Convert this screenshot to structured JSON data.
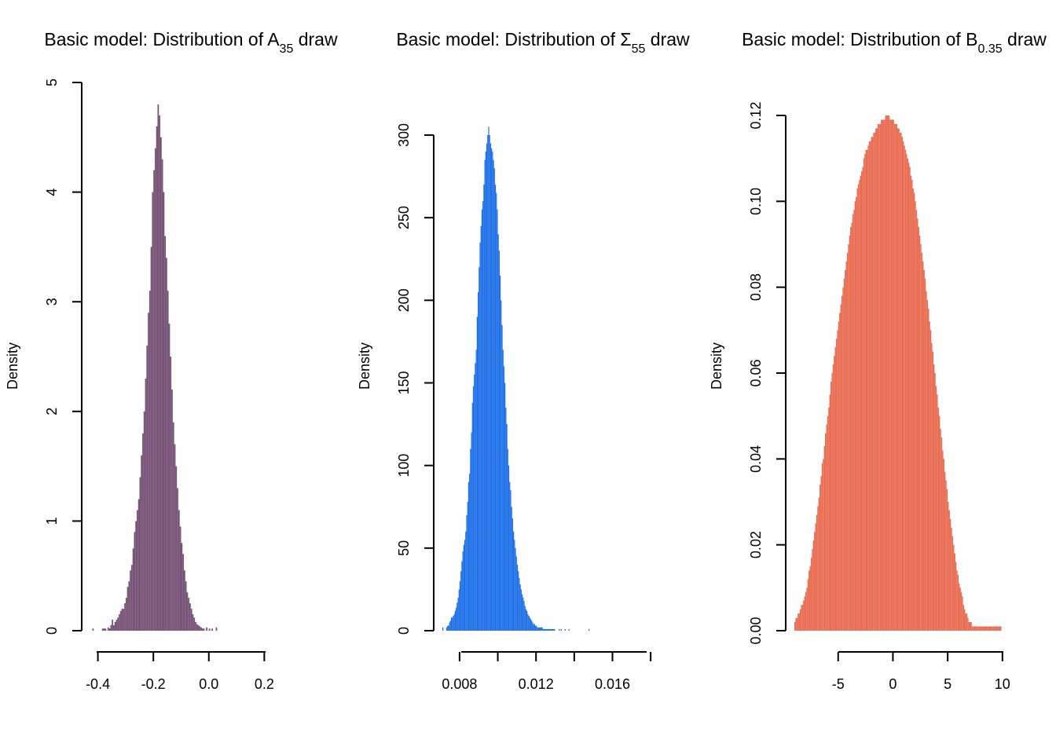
{
  "chart_data": [
    {
      "type": "bar",
      "title": "Basic model: Distribution of A",
      "title_sub": "35",
      "title_suffix": " draw",
      "xlabel": "",
      "ylabel": "Density",
      "color": "#775377",
      "xlim": [
        -0.43,
        0.335
      ],
      "ylim": [
        0,
        5
      ],
      "x_ticks": [
        -0.4,
        -0.2,
        0.0,
        0.2
      ],
      "x_tick_labels": [
        "-0.4",
        "-0.2",
        "0.0",
        "0.2"
      ],
      "y_ticks": [
        0,
        1,
        2,
        3,
        4,
        5
      ],
      "y_tick_labels": [
        "0",
        "1",
        "2",
        "3",
        "4",
        "5"
      ],
      "bin_start": -0.42,
      "bin_width": 0.005,
      "values": [
        0.02,
        0,
        0,
        0,
        0,
        0,
        0,
        0.02,
        0.02,
        0.02,
        0,
        0.03,
        0.02,
        0.05,
        0.1,
        0.05,
        0.08,
        0.1,
        0.12,
        0.15,
        0.18,
        0.2,
        0.2,
        0.25,
        0.3,
        0.4,
        0.45,
        0.55,
        0.6,
        0.75,
        0.9,
        1.0,
        1.1,
        1.2,
        1.4,
        1.6,
        1.8,
        2.0,
        2.3,
        2.6,
        2.9,
        3.1,
        3.5,
        4.0,
        4.2,
        4.4,
        4.6,
        4.8,
        4.7,
        4.5,
        4.3,
        4.0,
        3.6,
        3.4,
        3.1,
        2.8,
        2.5,
        2.2,
        1.9,
        1.7,
        1.5,
        1.3,
        1.1,
        0.95,
        0.8,
        0.7,
        0.55,
        0.45,
        0.35,
        0.3,
        0.25,
        0.2,
        0.15,
        0.12,
        0.08,
        0.06,
        0.05,
        0.04,
        0.03,
        0.02,
        0.02,
        0,
        0.03,
        0,
        0.02,
        0,
        0.02,
        0,
        0,
        0.03
      ]
    },
    {
      "type": "bar",
      "title": "Basic model: Distribution of Σ",
      "title_sub": "55",
      "title_suffix": " draw",
      "xlabel": "",
      "ylabel": "Density",
      "color": "#1d6fe8",
      "xlim": [
        0.0071,
        0.0182
      ],
      "ylim": [
        0,
        300
      ],
      "x_ticks": [
        0.008,
        0.01,
        0.012,
        0.014,
        0.016,
        0.018
      ],
      "x_tick_labels": [
        "0.008",
        "",
        "0.012",
        "",
        "0.016",
        ""
      ],
      "y_ticks": [
        0,
        50,
        100,
        150,
        200,
        250,
        300
      ],
      "y_tick_labels": [
        "0",
        "50",
        "100",
        "150",
        "200",
        "250",
        "300"
      ],
      "bin_start": 0.0071,
      "bin_width": 5e-05,
      "values": [
        2,
        0,
        0,
        0,
        2,
        3,
        3,
        5,
        6,
        8,
        8,
        9,
        10,
        12,
        14,
        17,
        20,
        25,
        30,
        36,
        42,
        48,
        52,
        55,
        60,
        70,
        78,
        90,
        95,
        110,
        120,
        138,
        148,
        155,
        162,
        170,
        190,
        205,
        220,
        235,
        245,
        255,
        260,
        270,
        285,
        290,
        295,
        300,
        305,
        300,
        295,
        292,
        290,
        285,
        280,
        270,
        265,
        255,
        240,
        230,
        215,
        200,
        185,
        170,
        160,
        150,
        135,
        125,
        110,
        100,
        90,
        85,
        75,
        68,
        60,
        55,
        50,
        45,
        40,
        36,
        32,
        28,
        25,
        22,
        20,
        18,
        15,
        13,
        12,
        10,
        9,
        8,
        7,
        6,
        5,
        4,
        4,
        3,
        3,
        2,
        2,
        2,
        2,
        2,
        2,
        1,
        1,
        1,
        1,
        1,
        1,
        1,
        1,
        1,
        1,
        1,
        1,
        1,
        0,
        0,
        0,
        0,
        1,
        0,
        1,
        0,
        0,
        0,
        1,
        0,
        0,
        0,
        1,
        0,
        0,
        0,
        0,
        0,
        0,
        0,
        0,
        0,
        0,
        0,
        0,
        0,
        0,
        0,
        0,
        0,
        0,
        0,
        0,
        1,
        0,
        0,
        0,
        0,
        0,
        0,
        0,
        0,
        0,
        0,
        0,
        0,
        0,
        0,
        0,
        0,
        0,
        0,
        0,
        0,
        0,
        0,
        0,
        0,
        0,
        0,
        0,
        0,
        0,
        0,
        0,
        0,
        0,
        0,
        0,
        0,
        0,
        0,
        0,
        0,
        0,
        0,
        0,
        0,
        0,
        0,
        0,
        0,
        0,
        0,
        0,
        0,
        0,
        0,
        0,
        0,
        0,
        0,
        0,
        0,
        0,
        0,
        0,
        0,
        0,
        0,
        0,
        0,
        0,
        0
      ]
    },
    {
      "type": "bar",
      "title": "Basic model: Distribution of B",
      "title_sub": "0.35",
      "title_suffix": " draw",
      "xlabel": "",
      "ylabel": "Density",
      "color": "#e96c51",
      "xlim": [
        -9,
        10.3
      ],
      "ylim": [
        0,
        0.12
      ],
      "x_ticks": [
        -5,
        0,
        5,
        10
      ],
      "x_tick_labels": [
        "-5",
        "0",
        "5",
        "10"
      ],
      "y_ticks": [
        0,
        0.02,
        0.04,
        0.06,
        0.08,
        0.1,
        0.12
      ],
      "y_tick_labels": [
        "0.00",
        "0.02",
        "0.04",
        "0.06",
        "0.08",
        "0.10",
        "0.12"
      ],
      "bin_start": -9,
      "bin_width": 0.1,
      "values": [
        0.002,
        0.003,
        0.003,
        0.004,
        0.004,
        0.005,
        0.006,
        0.006,
        0.007,
        0.008,
        0.009,
        0.01,
        0.012,
        0.014,
        0.015,
        0.017,
        0.019,
        0.021,
        0.023,
        0.025,
        0.027,
        0.029,
        0.031,
        0.034,
        0.036,
        0.039,
        0.04,
        0.043,
        0.046,
        0.048,
        0.05,
        0.052,
        0.055,
        0.058,
        0.06,
        0.062,
        0.064,
        0.066,
        0.068,
        0.07,
        0.072,
        0.074,
        0.076,
        0.078,
        0.08,
        0.082,
        0.084,
        0.086,
        0.088,
        0.09,
        0.092,
        0.094,
        0.095,
        0.097,
        0.098,
        0.1,
        0.101,
        0.103,
        0.104,
        0.105,
        0.106,
        0.107,
        0.108,
        0.11,
        0.111,
        0.112,
        0.112,
        0.113,
        0.114,
        0.114,
        0.115,
        0.115,
        0.116,
        0.116,
        0.117,
        0.117,
        0.118,
        0.118,
        0.118,
        0.119,
        0.119,
        0.119,
        0.119,
        0.12,
        0.12,
        0.12,
        0.12,
        0.119,
        0.119,
        0.119,
        0.119,
        0.118,
        0.118,
        0.118,
        0.117,
        0.117,
        0.116,
        0.116,
        0.115,
        0.114,
        0.113,
        0.112,
        0.111,
        0.11,
        0.109,
        0.108,
        0.106,
        0.105,
        0.103,
        0.102,
        0.1,
        0.098,
        0.096,
        0.094,
        0.092,
        0.09,
        0.088,
        0.086,
        0.084,
        0.082,
        0.079,
        0.077,
        0.075,
        0.072,
        0.07,
        0.067,
        0.065,
        0.062,
        0.06,
        0.057,
        0.055,
        0.052,
        0.05,
        0.047,
        0.045,
        0.042,
        0.04,
        0.037,
        0.035,
        0.033,
        0.03,
        0.028,
        0.026,
        0.024,
        0.022,
        0.02,
        0.018,
        0.016,
        0.014,
        0.013,
        0.011,
        0.01,
        0.009,
        0.008,
        0.006,
        0.005,
        0.004,
        0.004,
        0.003,
        0.002,
        0.002,
        0.002,
        0.001,
        0.001,
        0.001,
        0.001,
        0.001,
        0.001,
        0.001,
        0.001,
        0.001,
        0.001,
        0.001,
        0.001,
        0.001,
        0.001,
        0.001,
        0.001,
        0.001,
        0.001,
        0.001,
        0.001,
        0.001,
        0.001,
        0.001,
        0.001,
        0.001,
        0.001,
        0.001
      ]
    }
  ]
}
